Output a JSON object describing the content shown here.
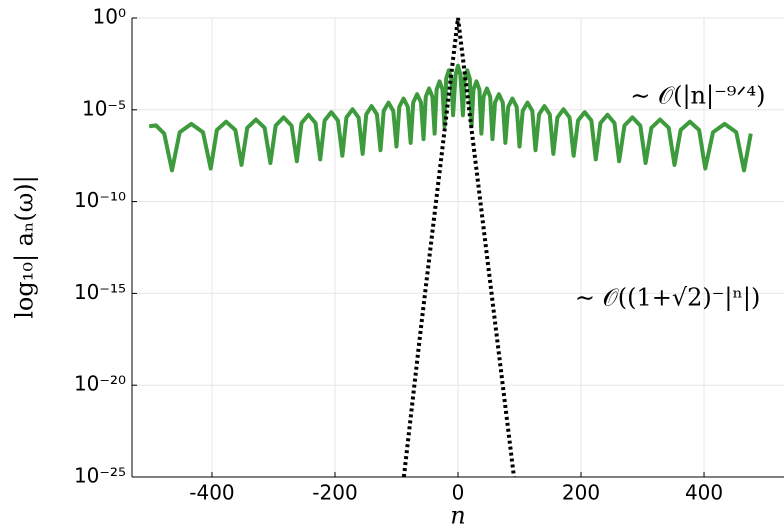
{
  "chart_data": {
    "type": "line",
    "xlabel": "n",
    "ylabel": "log₁₀| aₙ(ω)|",
    "xlim": [
      -530,
      530
    ],
    "ylim": [
      -25,
      0
    ],
    "xticks": [
      -400,
      -200,
      0,
      200,
      400
    ],
    "yticks": [
      {
        "value": 0,
        "label": "10⁰"
      },
      {
        "value": -5,
        "label": "10⁻⁵"
      },
      {
        "value": -10,
        "label": "10⁻¹⁰"
      },
      {
        "value": -15,
        "label": "10⁻¹⁵"
      },
      {
        "value": -20,
        "label": "10⁻²⁰"
      },
      {
        "value": -25,
        "label": "10⁻²⁵"
      }
    ],
    "grid": true,
    "annotations": [
      {
        "text": "∼ 𝒪(|n|⁻⁹ᐟ⁴)",
        "x": 280,
        "y": -4.3
      },
      {
        "text": "∼ 𝒪((1+√2)⁻|ⁿ|)",
        "x": 190,
        "y": -15.3
      }
    ],
    "series": [
      {
        "color": "#3d9a3d",
        "style": "solid",
        "x": [
          -502,
          -491,
          -477.6,
          -465,
          -452.4,
          -433.5,
          -414.6,
          -402,
          -392,
          -377,
          -362,
          -352,
          -342.6,
          -328.5,
          -314.4,
          -305,
          -296.4,
          -283.5,
          -270.6,
          -262,
          -254.4,
          -243,
          -231.6,
          -224,
          -216.8,
          -206,
          -195.2,
          -188,
          -181.4,
          -171.5,
          -161.6,
          -155,
          -149.2,
          -140.5,
          -131.8,
          -126,
          -120.8,
          -113,
          -105.2,
          -100,
          -95.4,
          -88.5,
          -81.6,
          -77,
          -72.8,
          -66.5,
          -60.2,
          -56,
          -52.4,
          -47,
          -41.6,
          -38,
          -34.8,
          -30,
          -25.2,
          -22,
          -19.2,
          -15,
          -10.8,
          -8,
          -4,
          0,
          4,
          8,
          10.8,
          15,
          19.2,
          22,
          25.2,
          30,
          34.8,
          38,
          41.6,
          47,
          52.4,
          56,
          60.2,
          66.5,
          72.8,
          77,
          81.6,
          88.5,
          95.4,
          100,
          105.2,
          113,
          120.8,
          126,
          131.8,
          140.5,
          149.2,
          155,
          161.6,
          171.5,
          181.4,
          188,
          195.2,
          206,
          216.8,
          224,
          231.6,
          243,
          254.4,
          262,
          270.6,
          283.5,
          296.4,
          305,
          314.4,
          328.5,
          342.6,
          352,
          362,
          377,
          392,
          402,
          414.6,
          433.5,
          452.4,
          465,
          476
        ],
        "values": [
          -5.9,
          -5.85,
          -6.3,
          -8.3,
          -6.22,
          -5.77,
          -6.22,
          -8.2,
          -6.1,
          -5.65,
          -6.1,
          -8.0,
          -5.98,
          -5.53,
          -5.98,
          -7.9,
          -5.86,
          -5.41,
          -5.86,
          -7.8,
          -5.72,
          -5.27,
          -5.72,
          -7.7,
          -5.58,
          -5.13,
          -5.58,
          -7.5,
          -5.42,
          -4.97,
          -5.42,
          -7.4,
          -5.25,
          -4.8,
          -5.25,
          -7.2,
          -5.06,
          -4.61,
          -5.06,
          -7.0,
          -4.84,
          -4.39,
          -4.84,
          -6.8,
          -4.6,
          -4.15,
          -4.6,
          -6.6,
          -4.29,
          -3.84,
          -4.29,
          -6.3,
          -3.9,
          -3.45,
          -3.9,
          -5.9,
          -3.3,
          -2.85,
          -3.3,
          -5.3,
          -3.1,
          -2.6,
          -3.1,
          -5.3,
          -3.3,
          -2.85,
          -3.3,
          -5.9,
          -3.9,
          -3.45,
          -3.9,
          -6.3,
          -4.29,
          -3.84,
          -4.29,
          -6.6,
          -4.6,
          -4.15,
          -4.6,
          -6.8,
          -4.84,
          -4.39,
          -4.84,
          -7.0,
          -5.06,
          -4.61,
          -5.06,
          -7.2,
          -5.25,
          -4.8,
          -5.25,
          -7.4,
          -5.42,
          -4.97,
          -5.42,
          -7.5,
          -5.58,
          -5.13,
          -5.58,
          -7.7,
          -5.72,
          -5.27,
          -5.72,
          -7.8,
          -5.86,
          -5.41,
          -5.86,
          -7.9,
          -5.98,
          -5.53,
          -5.98,
          -8.0,
          -6.1,
          -5.65,
          -6.1,
          -8.2,
          -6.22,
          -5.77,
          -6.22,
          -8.3,
          -6.3
        ]
      },
      {
        "color": "#000000",
        "style": "dotted",
        "x": [
          -88,
          -60,
          -40,
          -20,
          -10,
          0,
          10,
          20,
          40,
          60,
          91
        ],
        "values": [
          -25,
          -16.8,
          -11.2,
          -5.6,
          -2.8,
          0,
          -2.75,
          -5.5,
          -11,
          -16.5,
          -25
        ]
      }
    ]
  }
}
